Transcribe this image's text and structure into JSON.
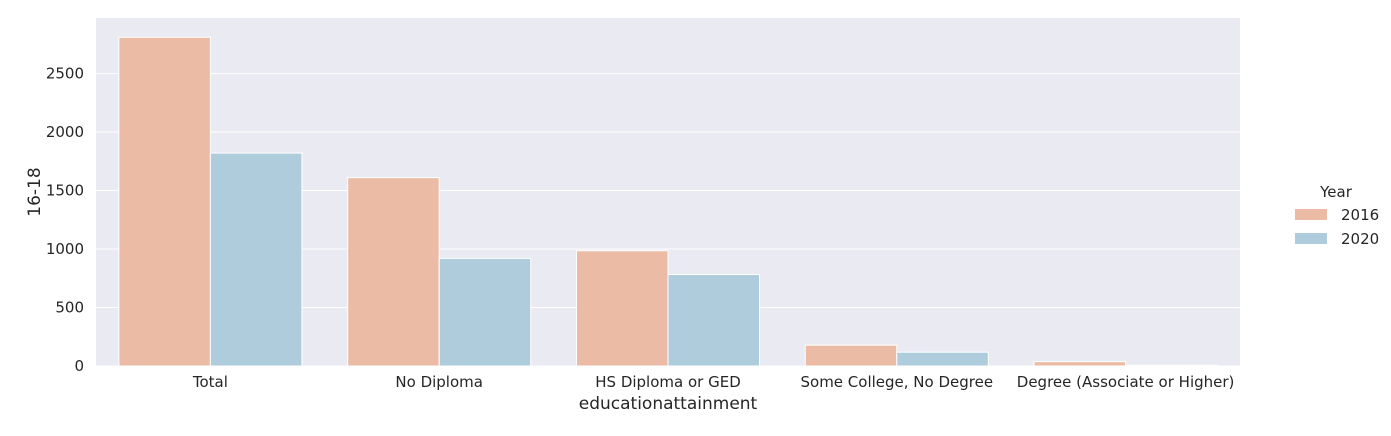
{
  "chart_data": {
    "type": "bar",
    "title": "",
    "xlabel": "educationattainment",
    "ylabel": "16-18",
    "categories": [
      "Total",
      "No Diploma",
      "HS Diploma or GED",
      "Some College, No Degree",
      "Degree (Associate or Higher)"
    ],
    "series": [
      {
        "name": "2016",
        "color": "#ebbba5",
        "values": [
          2810,
          1610,
          985,
          178,
          37
        ]
      },
      {
        "name": "2020",
        "color": "#afccdd",
        "values": [
          1820,
          920,
          782,
          118,
          6
        ]
      }
    ],
    "ylim": [
      0,
      2975
    ],
    "yticks": [
      0,
      500,
      1000,
      1500,
      2000,
      2500
    ],
    "grid": true,
    "plot_background": "#eaeaf2",
    "legend": {
      "title": "Year",
      "placement": "right"
    }
  }
}
